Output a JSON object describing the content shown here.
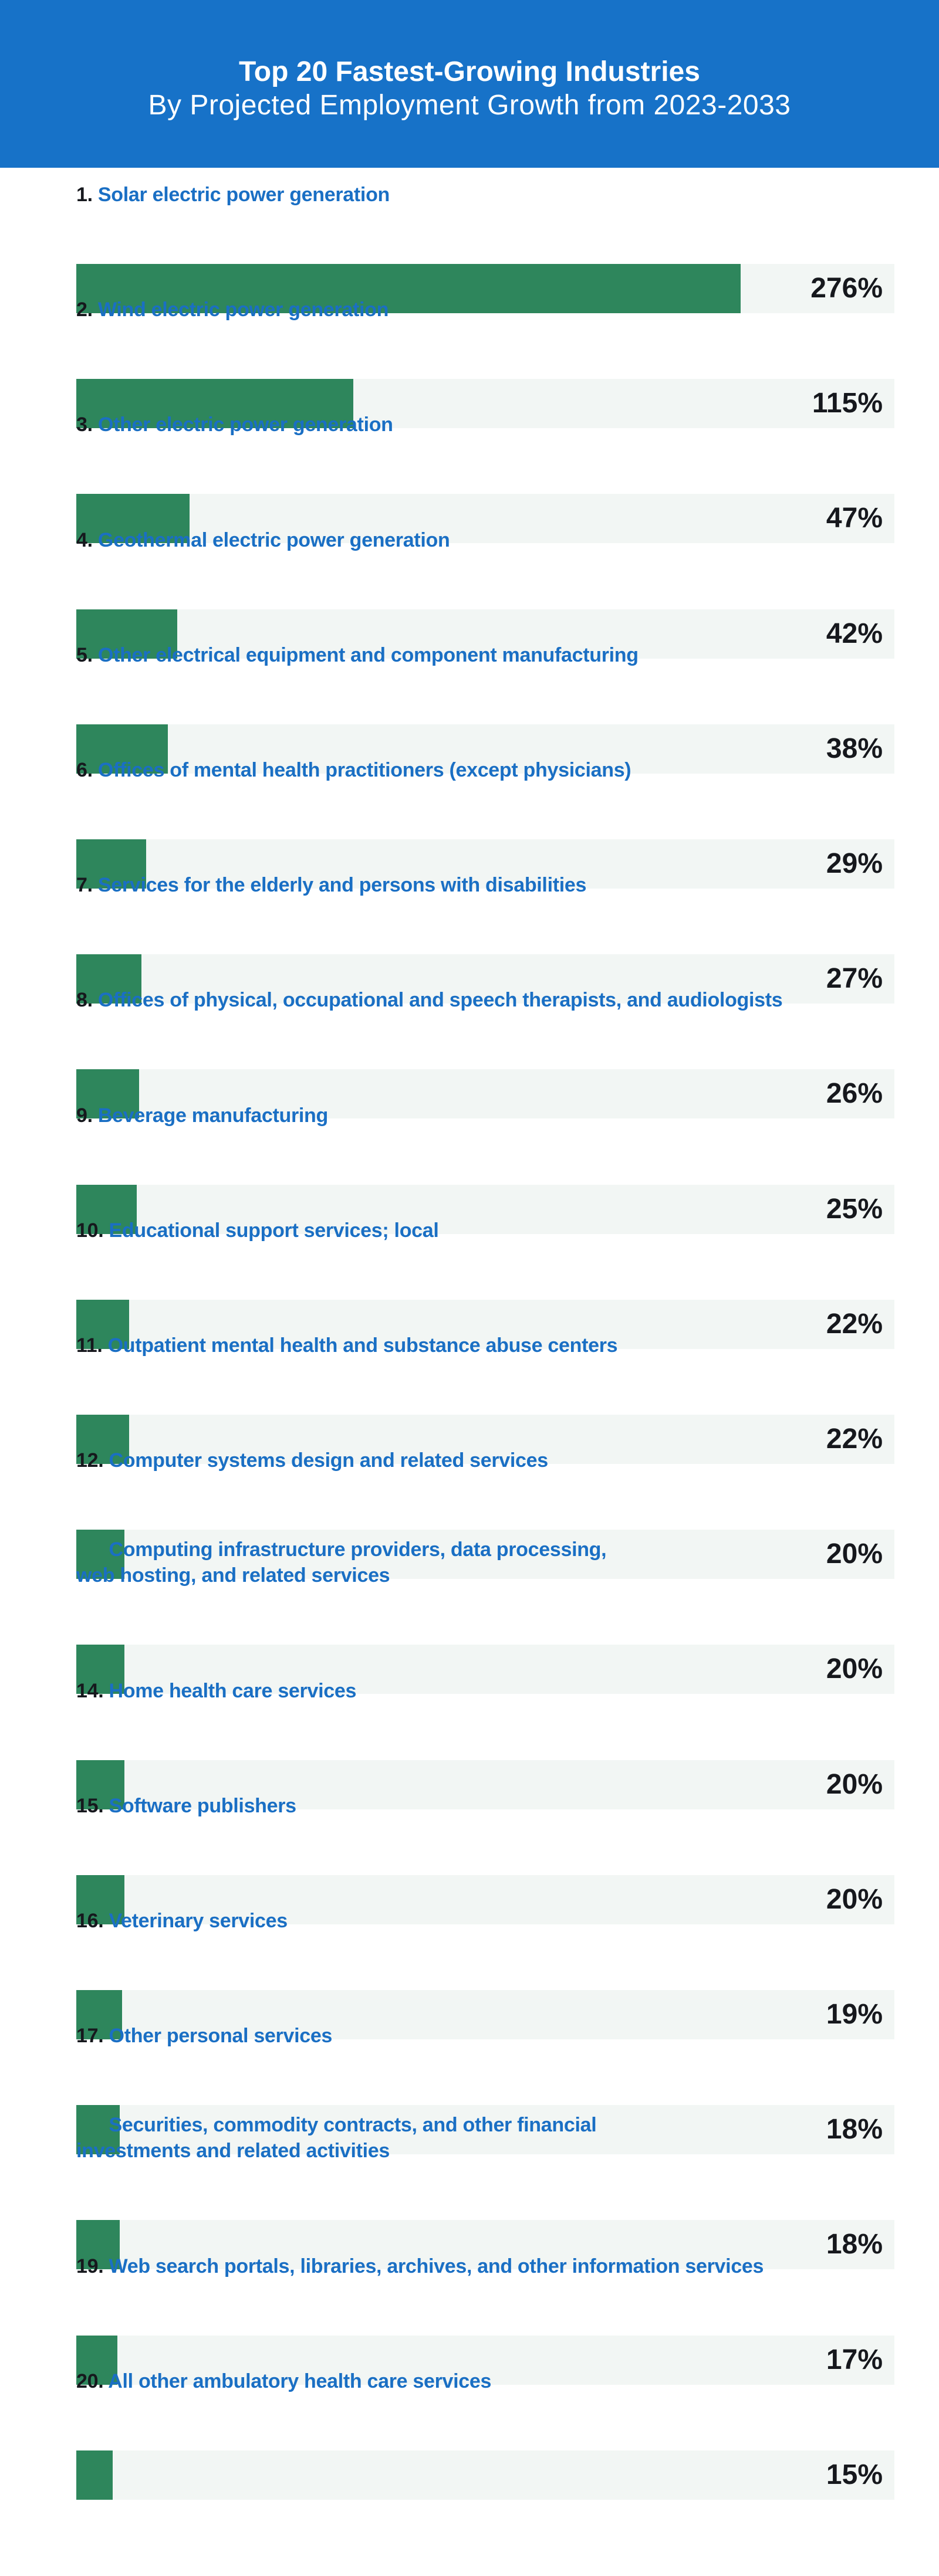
{
  "header": {
    "title": "Top 20 Fastest-Growing Industries",
    "subtitle": "By Projected Employment Growth from 2023-2033"
  },
  "colors": {
    "header": "#1772c8",
    "bar": "#2e865c",
    "track": "#f2f6f4",
    "label": "#1a6fc4"
  },
  "chart_data": {
    "type": "bar",
    "orientation": "horizontal",
    "title": "Top 20 Fastest-Growing Industries",
    "subtitle": "By Projected Employment Growth from 2023-2033",
    "unit": "%",
    "xlim": [
      0,
      340
    ],
    "grid": false,
    "items": [
      {
        "rank": "1.",
        "label": "Solar electric power generation",
        "value": 276,
        "display": "276%"
      },
      {
        "rank": "2.",
        "label": "Wind electric power generation",
        "value": 115,
        "display": "115%"
      },
      {
        "rank": "3.",
        "label": "Other electric power generation",
        "value": 47,
        "display": "47%"
      },
      {
        "rank": "4.",
        "label": "Geothermal electric power generation",
        "value": 42,
        "display": "42%"
      },
      {
        "rank": "5.",
        "label": "Other electrical equipment and component manufacturing",
        "value": 38,
        "display": "38%"
      },
      {
        "rank": "6.",
        "label": "Offices of mental health practitioners (except physicians)",
        "value": 29,
        "display": "29%"
      },
      {
        "rank": "7.",
        "label": "Services for the elderly and persons with disabilities",
        "value": 27,
        "display": "27%"
      },
      {
        "rank": "8.",
        "label": "Offices of physical, occupational and speech therapists, and audiologists",
        "value": 26,
        "display": "26%"
      },
      {
        "rank": "9.",
        "label": "Beverage manufacturing",
        "value": 25,
        "display": "25%"
      },
      {
        "rank": "10.",
        "label": "Educational support services; local",
        "value": 22,
        "display": "22%"
      },
      {
        "rank": "11.",
        "label": "Outpatient mental health and substance abuse centers",
        "value": 22,
        "display": "22%"
      },
      {
        "rank": "12.",
        "label": "Computer systems design and related services",
        "value": 20,
        "display": "20%"
      },
      {
        "rank": "13.",
        "label": "Computing infrastructure providers, data processing,",
        "label2": "web hosting, and related services",
        "value": 20,
        "display": "20%",
        "green_rank": true
      },
      {
        "rank": "14.",
        "label": "Home health care services",
        "value": 20,
        "display": "20%"
      },
      {
        "rank": "15.",
        "label": "Software publishers",
        "value": 20,
        "display": "20%"
      },
      {
        "rank": "16.",
        "label": "Veterinary services",
        "value": 19,
        "display": "19%"
      },
      {
        "rank": "17.",
        "label": "Other personal services",
        "value": 18,
        "display": "18%"
      },
      {
        "rank": "18.",
        "label": "Securities, commodity contracts, and other financial",
        "label2": "investments and related activities",
        "value": 18,
        "display": "18%",
        "green_rank": true
      },
      {
        "rank": "19.",
        "label": "Web search portals, libraries, archives, and other information services",
        "value": 17,
        "display": "17%"
      },
      {
        "rank": "20.",
        "label": "All other ambulatory health care services",
        "value": 15,
        "display": "15%"
      }
    ]
  }
}
